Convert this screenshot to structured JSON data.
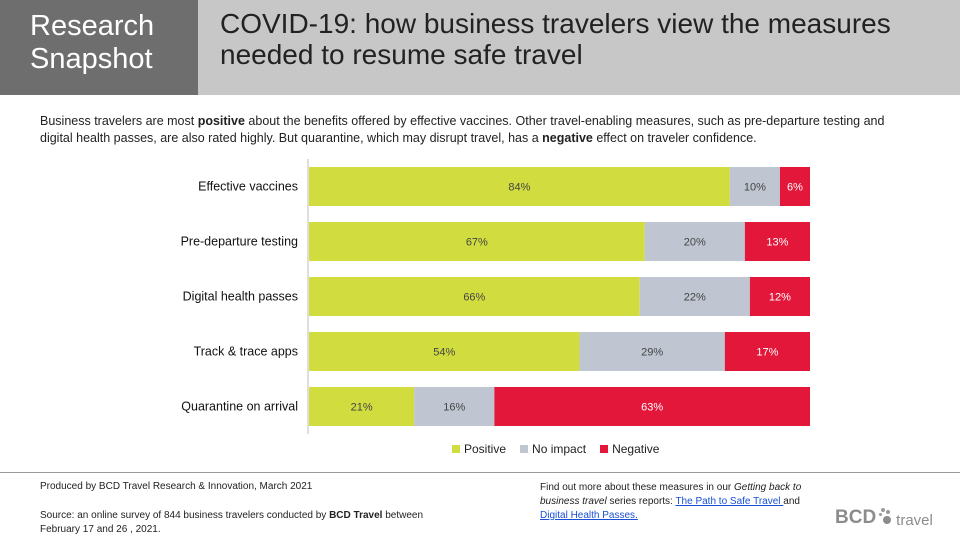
{
  "header": {
    "snapshot_line1": "Research",
    "snapshot_line2": "Snapshot",
    "title_line1": "COVID-19: how business travelers view the measures",
    "title_line2": "needed to resume safe travel"
  },
  "intro": {
    "part1": "Business travelers are most ",
    "positive_word": "positive",
    "part2": " about the benefits offered by effective vaccines. Other travel-enabling measures, such as pre-departure testing and digital health passes, are also rated highly. But quarantine, which may disrupt travel, has a ",
    "negative_word": "negative",
    "part3": " effect on traveler confidence."
  },
  "colors": {
    "positive": "#d1dd3f",
    "no_impact": "#bfc6d1",
    "negative": "#e3173a"
  },
  "chart_data": {
    "type": "bar",
    "orientation": "horizontal",
    "stacked": true,
    "categories": [
      "Effective vaccines",
      "Pre-departure testing",
      "Digital health passes",
      "Track & trace apps",
      "Quarantine on arrival"
    ],
    "series": [
      {
        "name": "Positive",
        "values": [
          84,
          67,
          66,
          54,
          21
        ],
        "labels": [
          "84%",
          "67%",
          "66%",
          "54%",
          "21%"
        ]
      },
      {
        "name": "No impact",
        "values": [
          10,
          20,
          22,
          29,
          16
        ],
        "labels": [
          "10%",
          "20%",
          "22%",
          "29%",
          "16%"
        ]
      },
      {
        "name": "Negative",
        "values": [
          6,
          13,
          12,
          17,
          63
        ],
        "labels": [
          "6%",
          "13%",
          "12%",
          "17%",
          "63%"
        ]
      }
    ],
    "xlim": [
      0,
      100
    ],
    "legend": {
      "position": "bottom",
      "entries": [
        "Positive",
        "No impact",
        "Negative"
      ]
    }
  },
  "footer": {
    "produced": "Produced by BCD Travel Research & Innovation, March 2021",
    "source_part1": "Source: an online survey of 844 business travelers conducted by ",
    "source_bold": "BCD Travel",
    "source_part2": " between February 17 and 26 , 2021.",
    "findout_part1": "Find out more about these measures in our ",
    "findout_italic": "Getting back to business travel",
    "findout_part2": " series reports: ",
    "link1": "The Path to Safe Travel ",
    "findout_and": "and",
    "link2": "Digital Health Passes."
  },
  "logo": {
    "brand": "BCD",
    "suffix": "travel"
  }
}
